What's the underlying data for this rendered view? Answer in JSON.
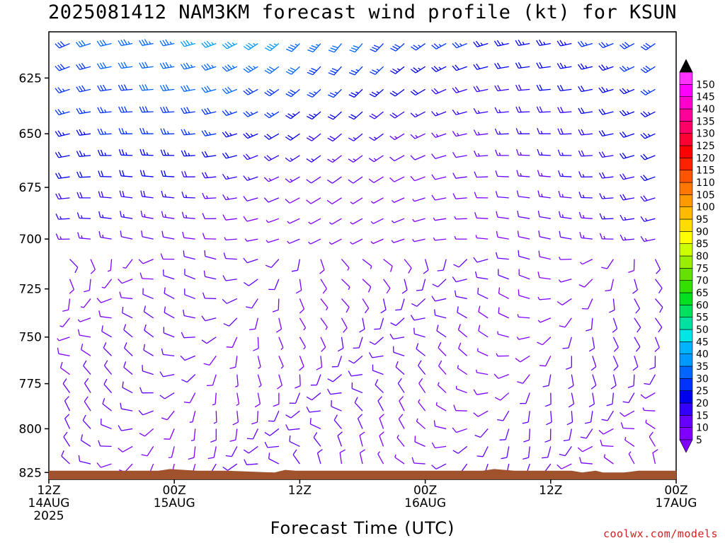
{
  "title": "2025081412 NAM3KM forecast wind profile (kt) for KSUN",
  "credit": "coolwx.com/models",
  "chart_data": {
    "type": "wind-barb-time-height",
    "title": "2025081412 NAM3KM forecast wind profile (kt) for KSUN",
    "xlabel": "Forecast Time (UTC)",
    "ylabel": "",
    "y_axis": {
      "ticks": [
        625,
        650,
        675,
        700,
        725,
        750,
        775,
        800,
        825
      ],
      "range_hpa": [
        605,
        829
      ],
      "direction": "pressure increasing downward"
    },
    "x_axis": {
      "range_forecast_hours": [
        0,
        60
      ],
      "tick_labels": [
        {
          "hour": 0,
          "lines": [
            "12Z",
            "14AUG",
            "2025"
          ]
        },
        {
          "hour": 12,
          "lines": [
            "00Z",
            "15AUG"
          ]
        },
        {
          "hour": 24,
          "lines": [
            "12Z"
          ]
        },
        {
          "hour": 36,
          "lines": [
            "00Z",
            "16AUG"
          ]
        },
        {
          "hour": 48,
          "lines": [
            "12Z"
          ]
        },
        {
          "hour": 60,
          "lines": [
            "00Z",
            "17AUG"
          ]
        }
      ]
    },
    "colorbar": {
      "unit": "kt",
      "levels": [
        5,
        10,
        15,
        20,
        25,
        30,
        35,
        40,
        45,
        50,
        55,
        60,
        65,
        70,
        75,
        80,
        85,
        90,
        95,
        100,
        105,
        110,
        115,
        120,
        125,
        130,
        135,
        140,
        145,
        150
      ],
      "colors": [
        "#8000ff",
        "#6600ff",
        "#3300ff",
        "#0000ee",
        "#0033ff",
        "#0066ff",
        "#0099ff",
        "#00b3ff",
        "#00e5e5",
        "#00e0a0",
        "#00e060",
        "#00e020",
        "#33e000",
        "#66e000",
        "#99ee00",
        "#ccff00",
        "#ffff00",
        "#ffdd00",
        "#ffbb00",
        "#ff9900",
        "#ff7700",
        "#ff5500",
        "#ff2200",
        "#ff0000",
        "#ff0033",
        "#ff0066",
        "#ff0099",
        "#ff00cc",
        "#ff00ff",
        "#ff33ff"
      ],
      "top_arrow_color": "#000000",
      "bottom_arrow_color": "#8000ff"
    },
    "terrain_color": "#a0522d",
    "terrain_pressure_hpa": [
      [
        0,
        824
      ],
      [
        6,
        824
      ],
      [
        10.5,
        824
      ],
      [
        11.6,
        823
      ],
      [
        14.2,
        824
      ],
      [
        15.5,
        824
      ],
      [
        17,
        824
      ],
      [
        21.6,
        825
      ],
      [
        22.6,
        823.5
      ],
      [
        23.6,
        824
      ],
      [
        27,
        824
      ],
      [
        31,
        824
      ],
      [
        35,
        824
      ],
      [
        40,
        824
      ],
      [
        41.5,
        824
      ],
      [
        42.6,
        823
      ],
      [
        44.5,
        824
      ],
      [
        48,
        824
      ],
      [
        50,
        824
      ],
      [
        51,
        825
      ],
      [
        52.3,
        824
      ],
      [
        53,
        825
      ],
      [
        55,
        825
      ],
      [
        56.4,
        824
      ],
      [
        60,
        824
      ]
    ],
    "wind_levels_hpa": [
      610,
      620,
      630,
      640,
      650,
      660,
      670,
      680,
      690,
      700,
      710,
      720,
      730,
      740,
      750,
      760,
      770,
      780,
      790,
      800,
      810,
      820
    ],
    "wind_times_hours": [
      0,
      2,
      4,
      6,
      8,
      10,
      12,
      14,
      16,
      18,
      20,
      22,
      24,
      26,
      28,
      30,
      32,
      34,
      36,
      38,
      40,
      42,
      44,
      46,
      48,
      50,
      52,
      54,
      56,
      58,
      60
    ]
  }
}
